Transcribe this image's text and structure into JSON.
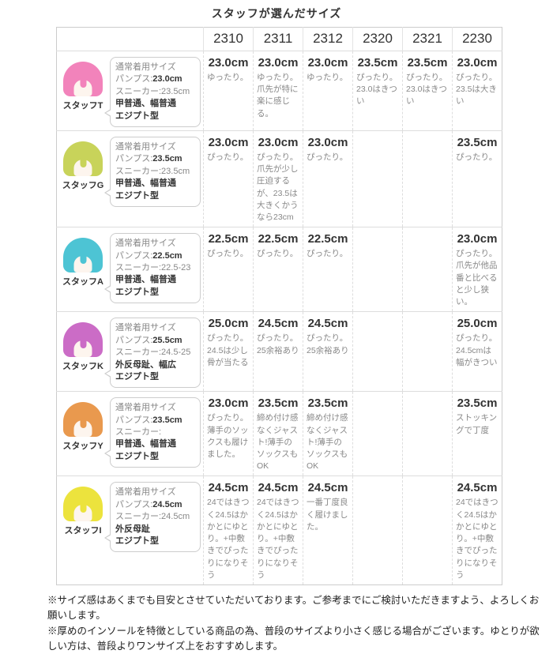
{
  "title": "スタッフが選んだサイズ",
  "columns": [
    "2310",
    "2311",
    "2312",
    "2320",
    "2321",
    "2230"
  ],
  "profile_header": "通常着用サイズ",
  "rows": [
    {
      "name": "スタッフT",
      "hair_color": "#f283bb",
      "profile": {
        "header": "通常着用サイズ",
        "pumps_label": "パンプス:",
        "pumps_size": "23.0cm",
        "sneaker": "スニーカー:23.5cm",
        "foot1": "甲普通、幅普通",
        "foot2": "エジプト型"
      },
      "cells": [
        {
          "size": "23.0cm",
          "comment": "ゆったり。"
        },
        {
          "size": "23.0cm",
          "comment": "ゆったり。爪先が特に楽に感じる。"
        },
        {
          "size": "23.0cm",
          "comment": "ゆったり。"
        },
        {
          "size": "23.5cm",
          "comment": "ぴったり。23.0はきつい"
        },
        {
          "size": "23.5cm",
          "comment": "ぴったり。23.0はきつい"
        },
        {
          "size": "23.0cm",
          "comment": "ぴったり。23.5は大きい"
        }
      ]
    },
    {
      "name": "スタッフG",
      "hair_color": "#c8d35a",
      "profile": {
        "header": "通常着用サイズ",
        "pumps_label": "パンプス:",
        "pumps_size": "23.5cm",
        "sneaker": "スニーカー:23.5cm",
        "foot1": "甲普通、幅普通",
        "foot2": "エジプト型"
      },
      "cells": [
        {
          "size": "23.0cm",
          "comment": "ぴったり。"
        },
        {
          "size": "23.0cm",
          "comment": "ぴったり。爪先が少し圧迫するが、23.5は大きくかうなら23cm"
        },
        {
          "size": "23.0cm",
          "comment": "ぴったり。"
        },
        {
          "size": "",
          "comment": ""
        },
        {
          "size": "",
          "comment": ""
        },
        {
          "size": "23.5cm",
          "comment": "ぴったり。"
        }
      ]
    },
    {
      "name": "スタッフA",
      "hair_color": "#4dc4d4",
      "profile": {
        "header": "通常着用サイズ",
        "pumps_label": "パンプス:",
        "pumps_size": "22.5cm",
        "sneaker": "スニーカー:22.5-23",
        "foot1": "甲普通、幅普通",
        "foot2": "エジプト型"
      },
      "cells": [
        {
          "size": "22.5cm",
          "comment": "ぴったり。"
        },
        {
          "size": "22.5cm",
          "comment": "ぴったり。"
        },
        {
          "size": "22.5cm",
          "comment": "ぴったり。"
        },
        {
          "size": "",
          "comment": ""
        },
        {
          "size": "",
          "comment": ""
        },
        {
          "size": "23.0cm",
          "comment": "ぴったり。爪先が他品番と比べると少し狭い。"
        }
      ]
    },
    {
      "name": "スタッフK",
      "hair_color": "#cb6cc6",
      "profile": {
        "header": "通常着用サイズ",
        "pumps_label": "パンプス:",
        "pumps_size": "25.5cm",
        "sneaker": "スニーカー:24.5-25",
        "foot1": "外反母趾、幅広",
        "foot2": "エジプト型"
      },
      "cells": [
        {
          "size": "25.0cm",
          "comment": "ぴったり。24.5は少し骨が当たる"
        },
        {
          "size": "24.5cm",
          "comment": "ぴったり。25余裕あり"
        },
        {
          "size": "24.5cm",
          "comment": "ぴったり。25余裕あり"
        },
        {
          "size": "",
          "comment": ""
        },
        {
          "size": "",
          "comment": ""
        },
        {
          "size": "25.0cm",
          "comment": "ぴったり。24.5cmは幅がきつい"
        }
      ]
    },
    {
      "name": "スタッフY",
      "hair_color": "#e9994e",
      "profile": {
        "header": "通常着用サイズ",
        "pumps_label": "パンプス:",
        "pumps_size": "23.5cm",
        "sneaker": "スニーカー:",
        "foot1": "甲普通、幅普通",
        "foot2": "エジプト型"
      },
      "cells": [
        {
          "size": "23.0cm",
          "comment": "ぴったり。薄手のソックスも履けました。"
        },
        {
          "size": "23.5cm",
          "comment": "締め付け感なくジャスト!薄手のソックスもOK"
        },
        {
          "size": "23.5cm",
          "comment": "締め付け感なくジャスト!薄手のソックスもOK"
        },
        {
          "size": "",
          "comment": ""
        },
        {
          "size": "",
          "comment": ""
        },
        {
          "size": "23.5cm",
          "comment": "ストッキングで丁度"
        }
      ]
    },
    {
      "name": "スタッフI",
      "hair_color": "#ece33d",
      "profile": {
        "header": "通常着用サイズ",
        "pumps_label": "パンプス:",
        "pumps_size": "24.5cm",
        "sneaker": "スニーカー:24.5cm",
        "foot1": "外反母趾",
        "foot2": "エジプト型"
      },
      "cells": [
        {
          "size": "24.5cm",
          "comment": "24ではきつく24.5はかかとにゆとり。+中敷きでぴったりになりそう"
        },
        {
          "size": "24.5cm",
          "comment": "24ではきつく24.5はかかとにゆとり。+中敷きでぴったりになりそう"
        },
        {
          "size": "24.5cm",
          "comment": "一番丁度良く履けました。"
        },
        {
          "size": "",
          "comment": ""
        },
        {
          "size": "",
          "comment": ""
        },
        {
          "size": "24.5cm",
          "comment": "24ではきつく24.5はかかとにゆとり。+中敷きでぴったりになりそう"
        }
      ]
    }
  ],
  "notes": [
    "※サイズ感はあくまでも目安とさせていただいております。ご参考までにご検討いただきますよう、よろしくお願いします。",
    "※厚めのインソールを特徴としている商品の為、普段のサイズより小さく感じる場合がございます。ゆとりが欲しい方は、普段よりワンサイズ上をおすすめします。"
  ]
}
